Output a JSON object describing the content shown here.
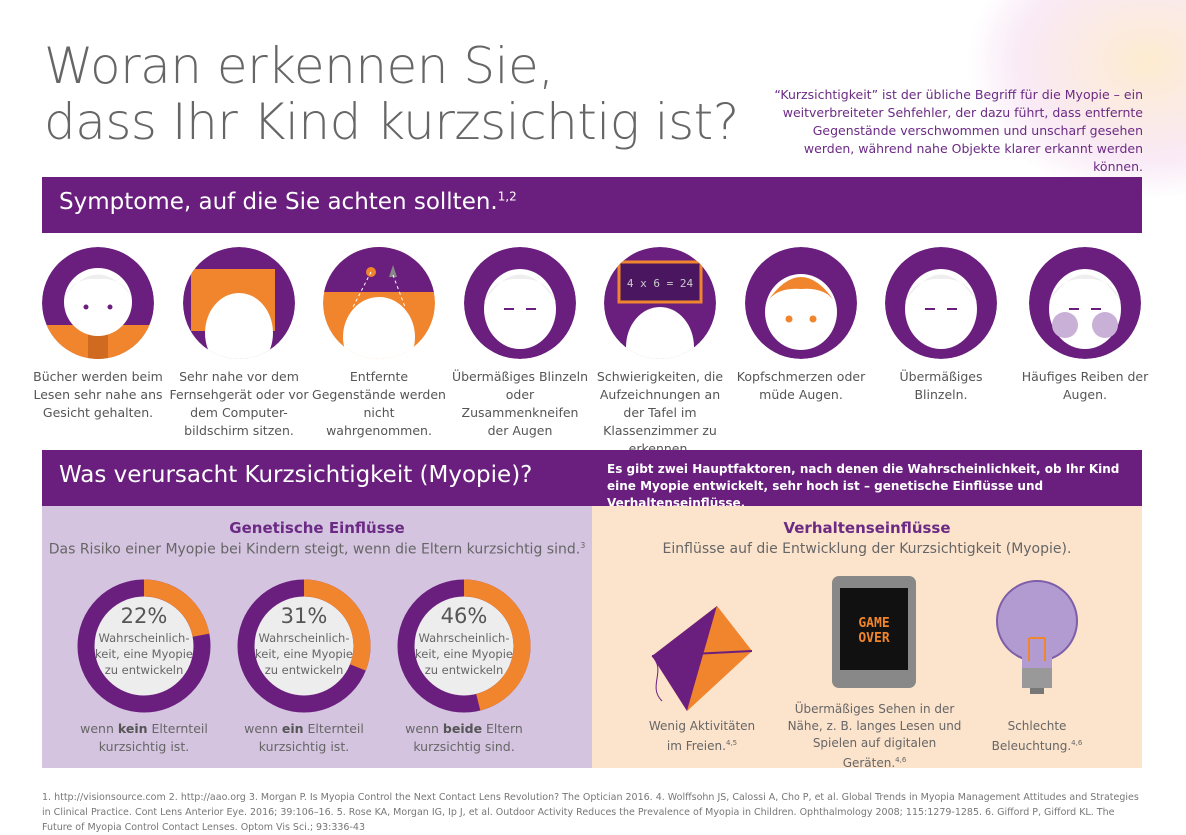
{
  "title": {
    "line1": "Woran erkennen Sie,",
    "line2": "dass Ihr Kind kurzsichtig ist?"
  },
  "intro": "“Kurzsichtigkeit” ist der übliche Begriff für die Myopie – ein weitverbreiteter Sehfehler, der dazu führt, dass entfernte Gegenstände verschwommen und unscharf gesehen werden, während nahe Objekte klarer erkannt werden können.",
  "symptoms": {
    "heading": "Symptome, auf die Sie achten sollten.",
    "sup": "1,2",
    "items": [
      {
        "label": "Bücher werden beim Lesen sehr nahe ans Gesicht gehalten."
      },
      {
        "label": "Sehr nahe vor dem Fernsehgerät oder vor dem Computer-bildschirm sitzen."
      },
      {
        "label": "Entfernte Gegenstände werden nicht wahrgenommen."
      },
      {
        "label": "Übermäßiges Blinzeln oder Zusammenkneifen der Augen"
      },
      {
        "label": "Schwierigkeiten, die Aufzeichnungen an der Tafel im Klassenzimmer zu erkennen.",
        "board": "4 x 6 = 24"
      },
      {
        "label": "Kopfschmerzen oder müde Augen."
      },
      {
        "label": "Übermäßiges Blinzeln."
      },
      {
        "label": "Häufiges Reiben der Augen."
      }
    ]
  },
  "causes": {
    "heading": "Was verursacht Kurzsichtigkeit (Myopie)?",
    "text": "Es gibt zwei Hauptfaktoren, nach denen die Wahrscheinlichkeit, ob Ihr Kind eine Myopie entwickelt, sehr hoch ist – genetische Einflüsse und Verhaltenseinflüsse."
  },
  "genetic": {
    "heading": "Genetische Einflüsse",
    "sub": "Das Risiko einer Myopie bei Kindern steigt, wenn die Eltern kurzsichtig sind.",
    "sup": "3",
    "donut_label": "Wahrscheinlich-keit, eine Myopie zu entwickeln",
    "items": [
      {
        "percent": 22,
        "pct_label": "22%",
        "pre": "wenn ",
        "bold": "kein",
        "post": " Elternteil kurzsichtig ist."
      },
      {
        "percent": 31,
        "pct_label": "31%",
        "pre": "wenn ",
        "bold": "ein",
        "post": " Elternteil kurzsichtig ist."
      },
      {
        "percent": 46,
        "pct_label": "46%",
        "pre": "wenn ",
        "bold": "beide",
        "post": " Eltern kurzsichtig sind."
      }
    ]
  },
  "behavior": {
    "heading": "Verhaltenseinflüsse",
    "sub": "Einflüsse auf die Entwicklung der Kurzsichtigkeit (Myopie).",
    "screen": {
      "line1": "GAME",
      "line2": "OVER"
    },
    "items": [
      {
        "label": "Wenig Aktivitäten im Freien.",
        "sup": "4,5"
      },
      {
        "label": "Übermäßiges Sehen in der Nähe, z. B. langes Lesen und Spielen auf digitalen Geräten.",
        "sup": "4,6"
      },
      {
        "label": "Schlechte Beleuchtung.",
        "sup": "4,6"
      }
    ]
  },
  "footnotes": "1. http://visionsource.com 2. http://aao.org 3. Morgan P. Is Myopia Control the Next Contact Lens Revolution? The Optician 2016. 4. Wolffsohn JS, Calossi A, Cho P, et al. Global Trends in Myopia Management Attitudes and Strategies in Clinical Practice. Cont Lens Anterior Eye. 2016; 39:106–16. 5. Rose KA, Morgan IG, Ip J, et al. Outdoor Activity Reduces the Prevalence of Myopia in Children. Ophthalmology 2008; 115:1279-1285. 6. Gifford P, Gifford KL. The Future of Myopia Control Contact Lenses. Optom Vis Sci.; 93:336-43",
  "colors": {
    "purple": "#6a1f7e",
    "orange": "#f0852d",
    "lilac": "#d4c4e0",
    "peach": "#fce3cc"
  }
}
